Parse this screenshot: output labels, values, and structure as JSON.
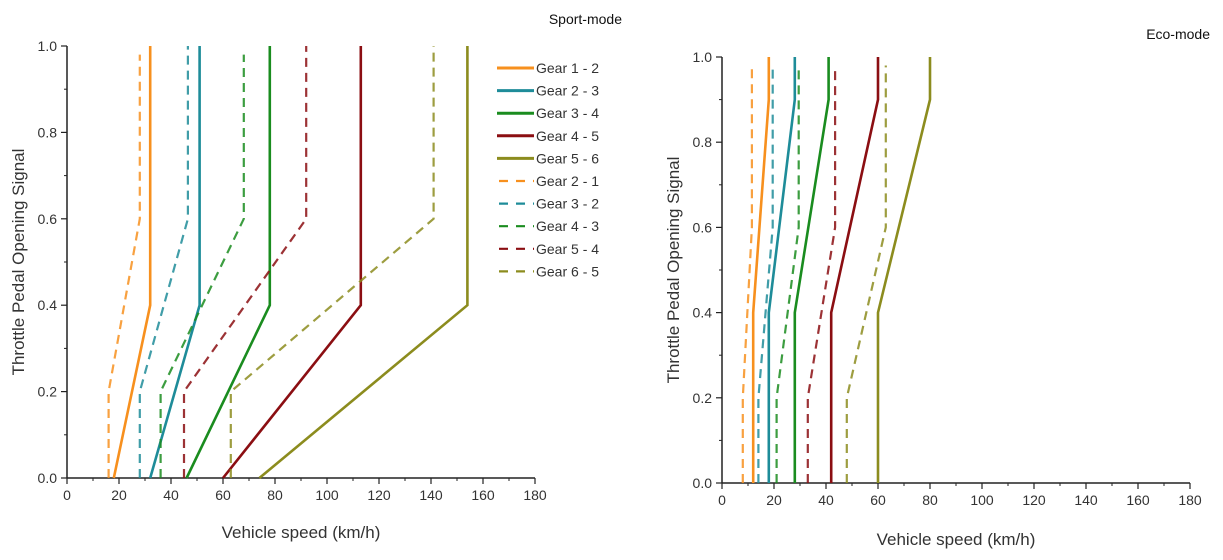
{
  "chart_data": [
    {
      "type": "line",
      "title": "Sport-mode",
      "xlabel": "Vehicle speed (km/h)",
      "ylabel": "Throttle Pedal Opening Signal",
      "xlim": [
        0,
        180
      ],
      "ylim": [
        0,
        1.0
      ],
      "xticks": [
        "0",
        "20",
        "40",
        "60",
        "80",
        "100",
        "120",
        "140",
        "160",
        "180"
      ],
      "yticks": [
        "0.0",
        "0.2",
        "0.4",
        "0.6",
        "0.8",
        "1.0"
      ],
      "grid": false,
      "legend": "top-right",
      "series": [
        {
          "name": "Gear 1 - 2",
          "style": "solid",
          "color": "#F7901E",
          "points": [
            [
              18,
              0
            ],
            [
              32,
              0.4
            ],
            [
              32,
              1.0
            ]
          ]
        },
        {
          "name": "Gear 2 - 3",
          "style": "solid",
          "color": "#1E8C99",
          "points": [
            [
              32,
              0
            ],
            [
              51,
              0.4
            ],
            [
              51,
              1.0
            ]
          ]
        },
        {
          "name": "Gear 3 - 4",
          "style": "solid",
          "color": "#1A8C1F",
          "points": [
            [
              46,
              0
            ],
            [
              78,
              0.4
            ],
            [
              78,
              1.0
            ]
          ]
        },
        {
          "name": "Gear 4 - 5",
          "style": "solid",
          "color": "#8B0E12",
          "points": [
            [
              60,
              0
            ],
            [
              113,
              0.4
            ],
            [
              113,
              1.0
            ]
          ]
        },
        {
          "name": "Gear 5 - 6",
          "style": "solid",
          "color": "#8C8C1E",
          "points": [
            [
              74,
              0
            ],
            [
              154,
              0.4
            ],
            [
              154,
              1.0
            ]
          ]
        },
        {
          "name": "Gear 2 - 1",
          "style": "dashed",
          "color": "#F7901E",
          "points": [
            [
              16,
              0
            ],
            [
              16,
              0.2
            ],
            [
              28,
              0.6
            ],
            [
              28,
              0.98
            ]
          ]
        },
        {
          "name": "Gear 3 - 2",
          "style": "dashed",
          "color": "#1E8C99",
          "points": [
            [
              28,
              0
            ],
            [
              28,
              0.2
            ],
            [
              46.5,
              0.6
            ],
            [
              46.5,
              1.0
            ]
          ]
        },
        {
          "name": "Gear 4 - 3",
          "style": "dashed",
          "color": "#1A8C1F",
          "points": [
            [
              36,
              0
            ],
            [
              36,
              0.2
            ],
            [
              68,
              0.6
            ],
            [
              68,
              0.98
            ]
          ]
        },
        {
          "name": "Gear 5 - 4",
          "style": "dashed",
          "color": "#8B0E12",
          "points": [
            [
              45,
              0
            ],
            [
              45,
              0.2
            ],
            [
              92,
              0.6
            ],
            [
              92,
              1.0
            ]
          ]
        },
        {
          "name": "Gear 6 - 5",
          "style": "dashed",
          "color": "#8C8C1E",
          "points": [
            [
              63,
              0
            ],
            [
              63,
              0.2
            ],
            [
              141,
              0.6
            ],
            [
              141,
              1.0
            ]
          ]
        }
      ]
    },
    {
      "type": "line",
      "title": "Eco-mode",
      "xlabel": "Vehicle speed (km/h)",
      "ylabel": "Throttle Pedal Opening Signal",
      "xlim": [
        0,
        180
      ],
      "ylim": [
        0,
        1.0
      ],
      "xticks": [
        "0",
        "20",
        "40",
        "60",
        "80",
        "100",
        "120",
        "140",
        "160",
        "180"
      ],
      "yticks": [
        "0.0",
        "0.2",
        "0.4",
        "0.6",
        "0.8",
        "1.0"
      ],
      "grid": false,
      "legend": "none",
      "series": [
        {
          "name": "Gear 1 - 2",
          "style": "solid",
          "color": "#F7901E",
          "points": [
            [
              12,
              0
            ],
            [
              12,
              0.4
            ],
            [
              18,
              0.9
            ],
            [
              18,
              1.0
            ]
          ]
        },
        {
          "name": "Gear 2 - 3",
          "style": "solid",
          "color": "#1E8C99",
          "points": [
            [
              18,
              0
            ],
            [
              18,
              0.4
            ],
            [
              28,
              0.9
            ],
            [
              28,
              1.0
            ]
          ]
        },
        {
          "name": "Gear 3 - 4",
          "style": "solid",
          "color": "#1A8C1F",
          "points": [
            [
              28,
              0
            ],
            [
              28,
              0.4
            ],
            [
              41,
              0.9
            ],
            [
              41,
              1.0
            ]
          ]
        },
        {
          "name": "Gear 4 - 5",
          "style": "solid",
          "color": "#8B0E12",
          "points": [
            [
              42,
              0
            ],
            [
              42,
              0.4
            ],
            [
              60,
              0.9
            ],
            [
              60,
              1.0
            ]
          ]
        },
        {
          "name": "Gear 5 - 6",
          "style": "solid",
          "color": "#8C8C1E",
          "points": [
            [
              60,
              0
            ],
            [
              60,
              0.4
            ],
            [
              80,
              0.9
            ],
            [
              80,
              1.0
            ]
          ]
        },
        {
          "name": "Gear 2 - 1",
          "style": "dashed",
          "color": "#F7901E",
          "points": [
            [
              8,
              0
            ],
            [
              8,
              0.2
            ],
            [
              11.5,
              0.6
            ],
            [
              11.5,
              0.98
            ]
          ]
        },
        {
          "name": "Gear 3 - 2",
          "style": "dashed",
          "color": "#1E8C99",
          "points": [
            [
              14,
              0
            ],
            [
              14,
              0.2
            ],
            [
              19.5,
              0.6
            ],
            [
              19.5,
              0.98
            ]
          ]
        },
        {
          "name": "Gear 4 - 3",
          "style": "dashed",
          "color": "#1A8C1F",
          "points": [
            [
              21,
              0
            ],
            [
              21,
              0.2
            ],
            [
              29.5,
              0.6
            ],
            [
              29.5,
              0.97
            ]
          ]
        },
        {
          "name": "Gear 5 - 4",
          "style": "dashed",
          "color": "#8B0E12",
          "points": [
            [
              33,
              0
            ],
            [
              33,
              0.2
            ],
            [
              43.5,
              0.6
            ],
            [
              43.5,
              0.97
            ]
          ]
        },
        {
          "name": "Gear 6 - 5",
          "style": "dashed",
          "color": "#8C8C1E",
          "points": [
            [
              48,
              0
            ],
            [
              48,
              0.2
            ],
            [
              63,
              0.6
            ],
            [
              63,
              0.98
            ]
          ]
        }
      ]
    }
  ]
}
